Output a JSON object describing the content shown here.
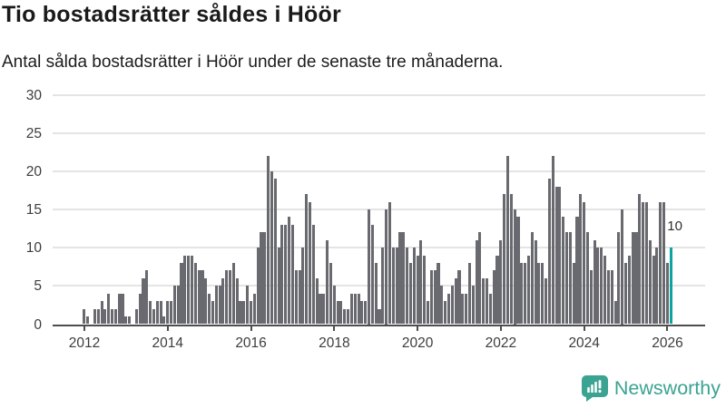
{
  "header": {
    "title": "Tio bostadsrätter såldes i Höör",
    "subtitle": "Antal sålda bostadsrätter i Höör under de senaste tre månaderna."
  },
  "chart_data": {
    "type": "bar",
    "title": "Tio bostadsrätter såldes i Höör",
    "xlabel": "",
    "ylabel": "",
    "ylim": [
      0,
      30
    ],
    "y_ticks": [
      0,
      5,
      10,
      15,
      20,
      25,
      30
    ],
    "x_tick_labels": [
      "2012",
      "2014",
      "2016",
      "2018",
      "2020",
      "2022",
      "2024",
      "2026"
    ],
    "grid": true,
    "frequency": "monthly",
    "start_month": "2012-01",
    "end_month": "2026-02",
    "bar_color": "#696a6f",
    "highlight_color": "#0da3a2",
    "values": [
      2,
      1,
      0,
      2,
      2,
      3,
      2,
      4,
      2,
      2,
      4,
      4,
      1,
      1,
      0,
      2,
      4,
      6,
      7,
      3,
      2,
      3,
      3,
      1,
      3,
      3,
      5,
      5,
      8,
      9,
      9,
      9,
      8,
      7,
      7,
      6,
      4,
      3,
      5,
      5,
      6,
      7,
      7,
      8,
      6,
      3,
      3,
      5,
      3,
      4,
      10,
      12,
      12,
      22,
      20,
      19,
      10,
      13,
      13,
      14,
      13,
      7,
      7,
      10,
      17,
      16,
      13,
      6,
      4,
      4,
      11,
      8,
      5,
      3,
      3,
      2,
      2,
      4,
      4,
      4,
      3,
      3,
      15,
      13,
      8,
      2,
      10,
      15,
      16,
      10,
      10,
      12,
      12,
      10,
      8,
      10,
      9,
      11,
      9,
      3,
      7,
      7,
      8,
      5,
      3,
      4,
      5,
      6,
      7,
      4,
      4,
      8,
      5,
      11,
      12,
      6,
      6,
      4,
      7,
      9,
      11,
      17,
      22,
      17,
      15,
      14,
      8,
      8,
      9,
      12,
      11,
      8,
      8,
      6,
      19,
      22,
      18,
      18,
      14,
      12,
      12,
      8,
      14,
      17,
      16,
      12,
      7,
      11,
      10,
      10,
      9,
      7,
      7,
      3,
      12,
      15,
      8,
      9,
      12,
      12,
      17,
      16,
      16,
      11,
      9,
      10,
      16,
      16,
      8,
      10
    ],
    "highlight_last": true,
    "last_value_label": "10"
  },
  "footer": {
    "logo_text": "Newsworthy",
    "logo_color": "#3aa391"
  }
}
